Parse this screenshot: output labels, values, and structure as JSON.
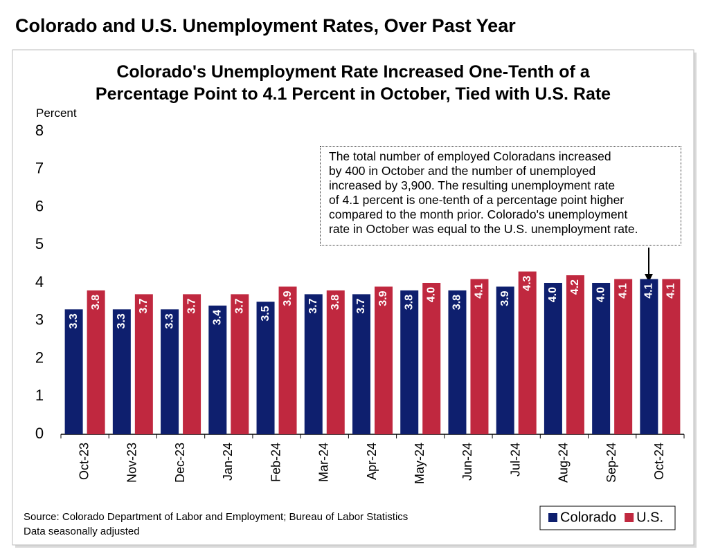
{
  "page_title": "Colorado and U.S. Unemployment Rates, Over Past Year",
  "chart_data": {
    "type": "bar",
    "title": "Colorado's Unemployment Rate Increased One-Tenth of a Percentage Point to 4.1 Percent in October, Tied with U.S. Rate",
    "y_label": "Percent",
    "categories": [
      "Oct-23",
      "Nov-23",
      "Dec-23",
      "Jan-24",
      "Feb-24",
      "Mar-24",
      "Apr-24",
      "May-24",
      "Jun-24",
      "Jul-24",
      "Aug-24",
      "Sep-24",
      "Oct-24"
    ],
    "series": [
      {
        "name": "Colorado",
        "color": "#0e1f6e",
        "values": [
          3.3,
          3.3,
          3.3,
          3.4,
          3.5,
          3.7,
          3.7,
          3.8,
          3.8,
          3.9,
          4.0,
          4.0,
          4.1
        ],
        "value_labels": [
          "3.3",
          "3.3",
          "3.3",
          "3.4",
          "3.5",
          "3.7",
          "3.7",
          "3.8",
          "3.8",
          "3.9",
          "4.0",
          "4.0",
          "4.1"
        ]
      },
      {
        "name": "U.S.",
        "color": "#c0283f",
        "values": [
          3.8,
          3.7,
          3.7,
          3.7,
          3.9,
          3.8,
          3.9,
          4.0,
          4.1,
          4.3,
          4.2,
          4.1,
          4.1
        ],
        "value_labels": [
          "3.8",
          "3.7",
          "3.7",
          "3.7",
          "3.9",
          "3.8",
          "3.9",
          "4.0",
          "4.1",
          "4.3",
          "4.2",
          "4.1",
          "4.1"
        ]
      }
    ],
    "ylim": [
      0,
      8
    ],
    "yticks": [
      0,
      1,
      2,
      3,
      4,
      5,
      6,
      7,
      8
    ],
    "grid": false,
    "legend": "bottom-right",
    "annotation": [
      "The total number of employed Coloradans increased",
      "by 400 in October and the number of unemployed",
      "increased by 3,900. The resulting unemployment rate",
      "of 4.1 percent is one-tenth of a percentage point higher",
      "compared to the month prior. Colorado's unemployment",
      "rate in October was equal to the U.S. unemployment rate."
    ],
    "source": "Source: Colorado Department of Labor and Employment; Bureau of Labor Statistics",
    "note": "Data seasonally adjusted"
  }
}
